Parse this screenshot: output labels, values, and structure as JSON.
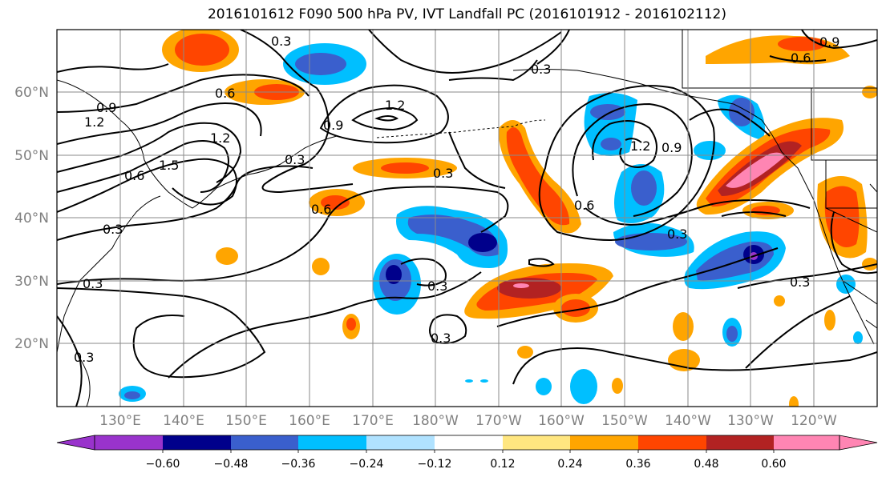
{
  "title": "2016101612 F090 500 hPa PV, IVT Landfall PC (2016101912 - 2016102112)",
  "map": {
    "lat_labels": [
      "60°N",
      "50°N",
      "40°N",
      "30°N",
      "20°N"
    ],
    "lon_labels": [
      "130°E",
      "140°E",
      "150°E",
      "160°E",
      "170°E",
      "180°W",
      "170°W",
      "160°W",
      "150°W",
      "140°W",
      "130°W",
      "120°W"
    ],
    "contour_labels": [
      "0.3",
      "0.6",
      "0.9",
      "1.2",
      "1.5"
    ],
    "contour_color": "#000000",
    "grid": true,
    "projection": "plate carree, 120°E to 110°W, 10°N to 70°N"
  },
  "colorbar": {
    "orientation": "horizontal",
    "extend": "both",
    "colors": [
      "#9933cc",
      "#00008b",
      "#3a5fcd",
      "#00bfff",
      "#b0e2ff",
      "#ffffff",
      "#ffe680",
      "#ffa500",
      "#ff4500",
      "#b22222",
      "#ff85b3"
    ],
    "tick_labels": [
      "−0.60",
      "−0.48",
      "−0.36",
      "−0.24",
      "−0.12",
      "0.12",
      "0.24",
      "0.36",
      "0.48",
      "0.60"
    ]
  }
}
